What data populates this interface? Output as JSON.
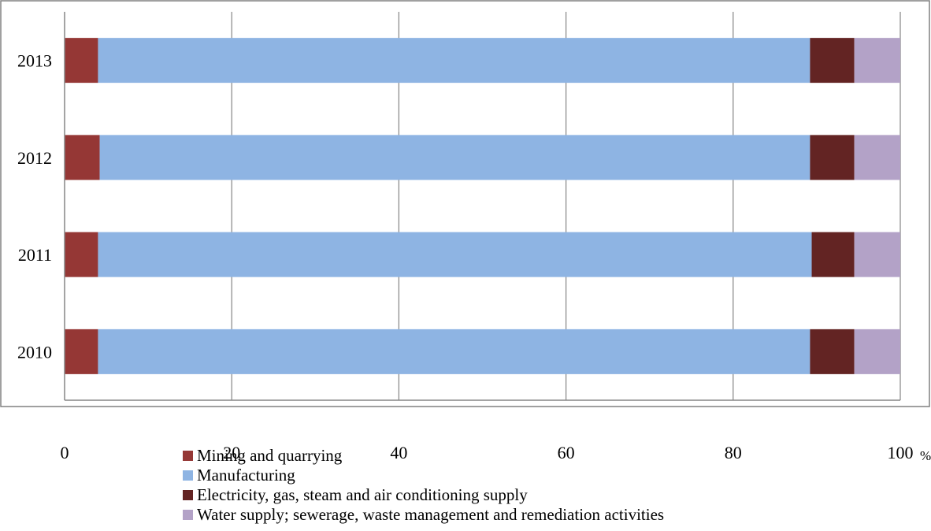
{
  "chart_data": {
    "type": "bar",
    "orientation": "horizontal",
    "stacked": true,
    "categories": [
      "2010",
      "2011",
      "2012",
      "2013"
    ],
    "series": [
      {
        "name": "Mining and quarrying",
        "color": "#953735",
        "values": [
          4.0,
          4.0,
          4.2,
          4.0
        ]
      },
      {
        "name": "Manufacturing",
        "color": "#8eb4e3",
        "values": [
          85.2,
          85.4,
          85.0,
          85.2
        ]
      },
      {
        "name": "Electricity, gas, steam and air conditioning supply",
        "color": "#632423",
        "values": [
          5.3,
          5.1,
          5.3,
          5.3
        ]
      },
      {
        "name": "Water supply; sewerage, waste management and remediation activities",
        "color": "#b3a2c7",
        "values": [
          5.5,
          5.5,
          5.5,
          5.5
        ]
      }
    ],
    "xlim": [
      0,
      100
    ],
    "xticks": [
      "0",
      "20",
      "40",
      "60",
      "80",
      "100"
    ],
    "xunit": "%",
    "grid": "vertical",
    "legend": "bottom"
  }
}
